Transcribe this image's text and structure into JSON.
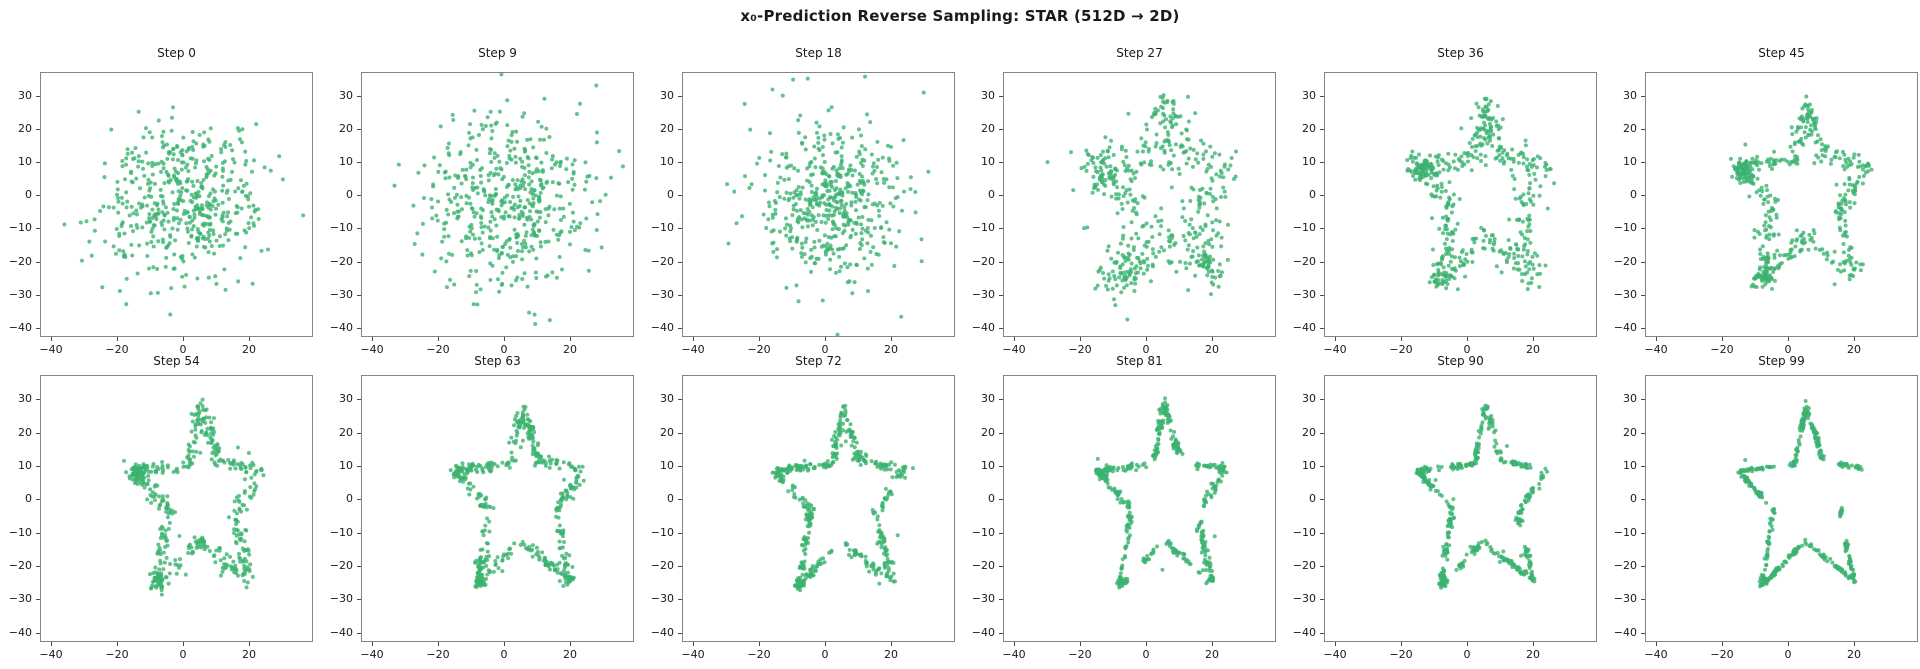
{
  "figure": {
    "background": "#ffffff",
    "spine_color": "#848484",
    "text_color": "#1a1a1a"
  },
  "chart_data": {
    "type": "scatter",
    "title": "x₀-Prediction Reverse Sampling: STAR (512D → 2D)",
    "layout": {
      "rows": 2,
      "cols": 6
    },
    "xlabel": "",
    "ylabel": "",
    "xlim": [
      -43,
      39
    ],
    "ylim": [
      -42.5,
      37
    ],
    "x_ticks": [
      -40,
      -20,
      0,
      20
    ],
    "y_ticks": [
      30,
      20,
      10,
      0,
      -10,
      -20,
      -30,
      -40
    ],
    "grid": false,
    "legend": null,
    "marker": {
      "color": "#3cb371",
      "alpha": 0.8,
      "radius_px": 2.0
    },
    "n_points_per_subplot": 500,
    "description": "Each panel shows 500 2D samples during reverse diffusion sampling: early steps are an isotropic Gaussian noise cloud (std ≈ 12, centered near the origin); later steps collapse onto a five-pointed star outline.",
    "star_outline_vertices": [
      [
        5.5,
        28.5
      ],
      [
        10.5,
        11.5
      ],
      [
        24.0,
        9.0
      ],
      [
        15.5,
        -4.0
      ],
      [
        20.0,
        -24.5
      ],
      [
        5.0,
        -12.5
      ],
      [
        -8.0,
        -26.0
      ],
      [
        -4.5,
        -3.0
      ],
      [
        -15.0,
        8.5
      ],
      [
        2.0,
        10.5
      ]
    ],
    "noise_center": [
      1,
      -1
    ],
    "subplots": [
      {
        "title": "Step 0",
        "step": 0,
        "mode": "noise",
        "spread": 12.0,
        "seed": 101
      },
      {
        "title": "Step 9",
        "step": 9,
        "mode": "noise",
        "spread": 12.5,
        "seed": 202
      },
      {
        "title": "Step 18",
        "step": 18,
        "mode": "mix",
        "spread": 14.0,
        "blend": 0.22,
        "jitter": 3.5,
        "seed": 303
      },
      {
        "title": "Step 27",
        "step": 27,
        "mode": "star",
        "jitter": 3.0,
        "outlier_frac": 0.1,
        "outlier_std": 5.5,
        "tip_boost": 0.12,
        "clumps": 0,
        "seed": 404
      },
      {
        "title": "Step 36",
        "step": 36,
        "mode": "star",
        "jitter": 1.9,
        "outlier_frac": 0.06,
        "outlier_std": 4.5,
        "tip_boost": 0.13,
        "clumps": 0,
        "seed": 505
      },
      {
        "title": "Step 45",
        "step": 45,
        "mode": "star",
        "jitter": 1.3,
        "outlier_frac": 0.05,
        "outlier_std": 3.5,
        "tip_boost": 0.13,
        "clumps": 0,
        "seed": 606
      },
      {
        "title": "Step 54",
        "step": 54,
        "mode": "star",
        "jitter": 1.0,
        "outlier_frac": 0.04,
        "outlier_std": 3.0,
        "tip_boost": 0.12,
        "clumps": 0,
        "seed": 707
      },
      {
        "title": "Step 63",
        "step": 63,
        "mode": "star",
        "jitter": 0.8,
        "outlier_frac": 0.03,
        "outlier_std": 2.5,
        "tip_boost": 0.1,
        "clumps": 170,
        "seed": 808
      },
      {
        "title": "Step 72",
        "step": 72,
        "mode": "star",
        "jitter": 0.65,
        "outlier_frac": 0.025,
        "outlier_std": 2.5,
        "tip_boost": 0.09,
        "clumps": 150,
        "seed": 909
      },
      {
        "title": "Step 81",
        "step": 81,
        "mode": "star",
        "jitter": 0.5,
        "outlier_frac": 0.02,
        "outlier_std": 2.5,
        "tip_boost": 0.08,
        "clumps": 130,
        "seed": 1010
      },
      {
        "title": "Step 90",
        "step": 90,
        "mode": "star",
        "jitter": 0.4,
        "outlier_frac": 0.015,
        "outlier_std": 2.5,
        "tip_boost": 0.08,
        "clumps": 110,
        "seed": 1111
      },
      {
        "title": "Step 99",
        "step": 99,
        "mode": "star",
        "jitter": 0.3,
        "outlier_frac": 0.012,
        "outlier_std": 2.5,
        "tip_boost": 0.07,
        "clumps": 90,
        "seed": 1212
      }
    ]
  }
}
